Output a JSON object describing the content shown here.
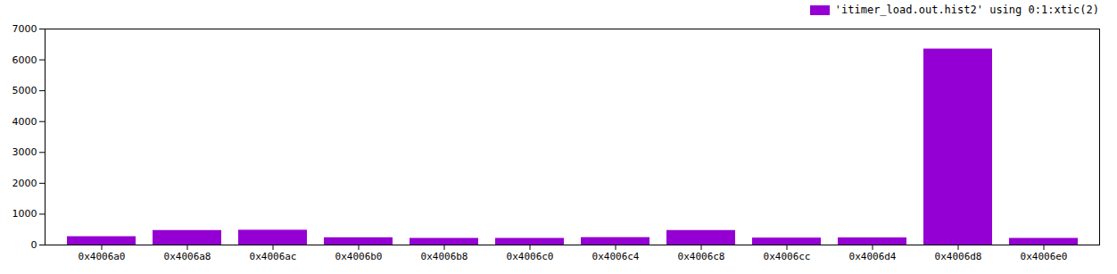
{
  "chart_data": {
    "type": "bar",
    "categories": [
      "0x4006a0",
      "0x4006a8",
      "0x4006ac",
      "0x4006b0",
      "0x4006b8",
      "0x4006c0",
      "0x4006c4",
      "0x4006c8",
      "0x4006cc",
      "0x4006d4",
      "0x4006d8",
      "0x4006e0"
    ],
    "series": [
      {
        "name": "'itimer_load.out.hist2' using 0:1:xtic(2)",
        "color": "#9400d3",
        "values": [
          270,
          470,
          480,
          235,
          215,
          215,
          240,
          470,
          225,
          230,
          6350,
          215
        ]
      }
    ],
    "ylim": [
      0,
      7000
    ],
    "yticks": [
      0,
      1000,
      2000,
      3000,
      4000,
      5000,
      6000,
      7000
    ],
    "grid": false,
    "legend": "upper right"
  }
}
